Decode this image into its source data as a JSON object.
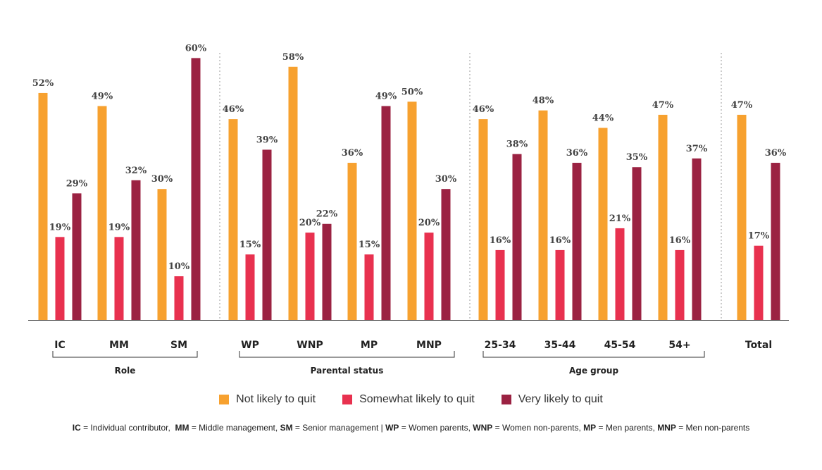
{
  "chart_data": {
    "type": "bar",
    "ylim": [
      0,
      62
    ],
    "series": [
      {
        "name": "Not likely to quit",
        "color": "#F7A12F"
      },
      {
        "name": "Somewhat likely to quit",
        "color": "#E8314F"
      },
      {
        "name": "Very likely to quit",
        "color": "#9B2242"
      }
    ],
    "groups": [
      {
        "label": "Role",
        "categories": [
          {
            "label": "IC",
            "values": [
              52,
              19,
              29
            ]
          },
          {
            "label": "MM",
            "values": [
              49,
              19,
              32
            ]
          },
          {
            "label": "SM",
            "values": [
              30,
              10,
              60
            ]
          }
        ]
      },
      {
        "label": "Parental status",
        "categories": [
          {
            "label": "WP",
            "values": [
              46,
              15,
              39
            ]
          },
          {
            "label": "WNP",
            "values": [
              58,
              20,
              22
            ]
          },
          {
            "label": "MP",
            "values": [
              36,
              15,
              49
            ]
          },
          {
            "label": "MNP",
            "values": [
              50,
              20,
              30
            ]
          }
        ]
      },
      {
        "label": "Age group",
        "categories": [
          {
            "label": "25-34",
            "values": [
              46,
              16,
              38
            ]
          },
          {
            "label": "35-44",
            "values": [
              48,
              16,
              36
            ]
          },
          {
            "label": "45-54",
            "values": [
              44,
              21,
              35
            ]
          },
          {
            "label": "54+",
            "values": [
              47,
              16,
              37
            ]
          }
        ]
      },
      {
        "label": "",
        "categories": [
          {
            "label": "Total",
            "values": [
              47,
              17,
              36
            ]
          }
        ]
      }
    ],
    "value_suffix": "%"
  },
  "footnote": [
    {
      "abbr": "IC",
      "text": " = Individual contributor,  "
    },
    {
      "abbr": "MM",
      "text": " = Middle management, "
    },
    {
      "abbr": "SM",
      "text": " = Senior management | "
    },
    {
      "abbr": "WP",
      "text": " = Women parents, "
    },
    {
      "abbr": "WNP",
      "text": " = Women non-parents, "
    },
    {
      "abbr": "MP",
      "text": " = Men parents, "
    },
    {
      "abbr": "MNP",
      "text": " = Men non-parents"
    }
  ]
}
